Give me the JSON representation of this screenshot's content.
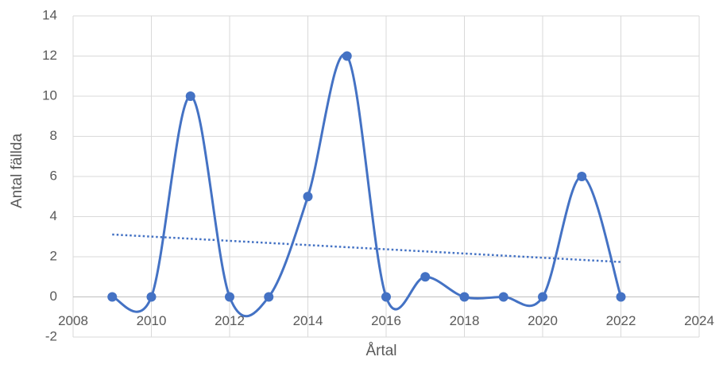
{
  "chart_data": {
    "type": "scatter",
    "xlabel": "Årtal",
    "ylabel": "Antal fällda",
    "xlim": [
      2008,
      2024
    ],
    "xticks": [
      2008,
      2010,
      2012,
      2014,
      2016,
      2018,
      2020,
      2022,
      2024
    ],
    "ylim": [
      -2,
      14
    ],
    "yticks": [
      -2,
      0,
      2,
      4,
      6,
      8,
      10,
      12,
      14
    ],
    "grid": true,
    "series": [
      {
        "color": "#4472c4",
        "line": "smooth",
        "markers": true,
        "x": [
          2009,
          2010,
          2011,
          2012,
          2013,
          2014,
          2015,
          2016,
          2017,
          2018,
          2019,
          2020,
          2021,
          2022
        ],
        "values": [
          0,
          0,
          10,
          0,
          0,
          5,
          12,
          0,
          1,
          0,
          0,
          0,
          6,
          0
        ]
      },
      {
        "color": "#4472c4",
        "line": "dotted",
        "markers": false,
        "x": [
          2009,
          2022
        ],
        "values": [
          3.11,
          1.74
        ]
      }
    ]
  }
}
